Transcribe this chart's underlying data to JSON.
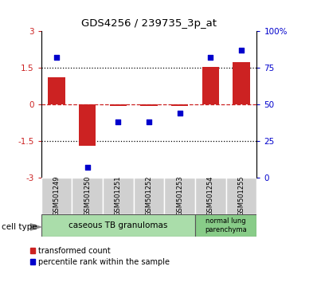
{
  "title": "GDS4256 / 239735_3p_at",
  "samples": [
    "GSM501249",
    "GSM501250",
    "GSM501251",
    "GSM501252",
    "GSM501253",
    "GSM501254",
    "GSM501255"
  ],
  "bar_values": [
    1.1,
    -1.7,
    -0.07,
    -0.05,
    -0.07,
    1.52,
    1.72
  ],
  "scatter_values": [
    82,
    7,
    38,
    38,
    44,
    82,
    87
  ],
  "ylim_left": [
    -3,
    3
  ],
  "ylim_right": [
    0,
    100
  ],
  "hlines_dotted": [
    1.5,
    -1.5
  ],
  "hline_dashed": 0,
  "right_ticks": [
    0,
    25,
    50,
    75,
    100
  ],
  "right_tick_labels": [
    "0",
    "25",
    "50",
    "75",
    "100%"
  ],
  "left_ticks": [
    -3,
    -1.5,
    0,
    1.5,
    3
  ],
  "left_tick_labels": [
    "-3",
    "-1.5",
    "0",
    "1.5",
    "3"
  ],
  "bar_color": "#cc2222",
  "scatter_color": "#0000cc",
  "cell_type_label": "cell type",
  "group0_label": "caseous TB granulomas",
  "group0_n": 5,
  "group0_color": "#aaddaa",
  "group1_label": "normal lung\nparenchyma",
  "group1_n": 2,
  "group1_color": "#88cc88",
  "legend_bar_label": "transformed count",
  "legend_scatter_label": "percentile rank within the sample",
  "background_plot": "#ffffff",
  "background_sample_box": "#d0d0d0",
  "dashed_zero_color": "#cc2222",
  "dotted_color": "#000000"
}
